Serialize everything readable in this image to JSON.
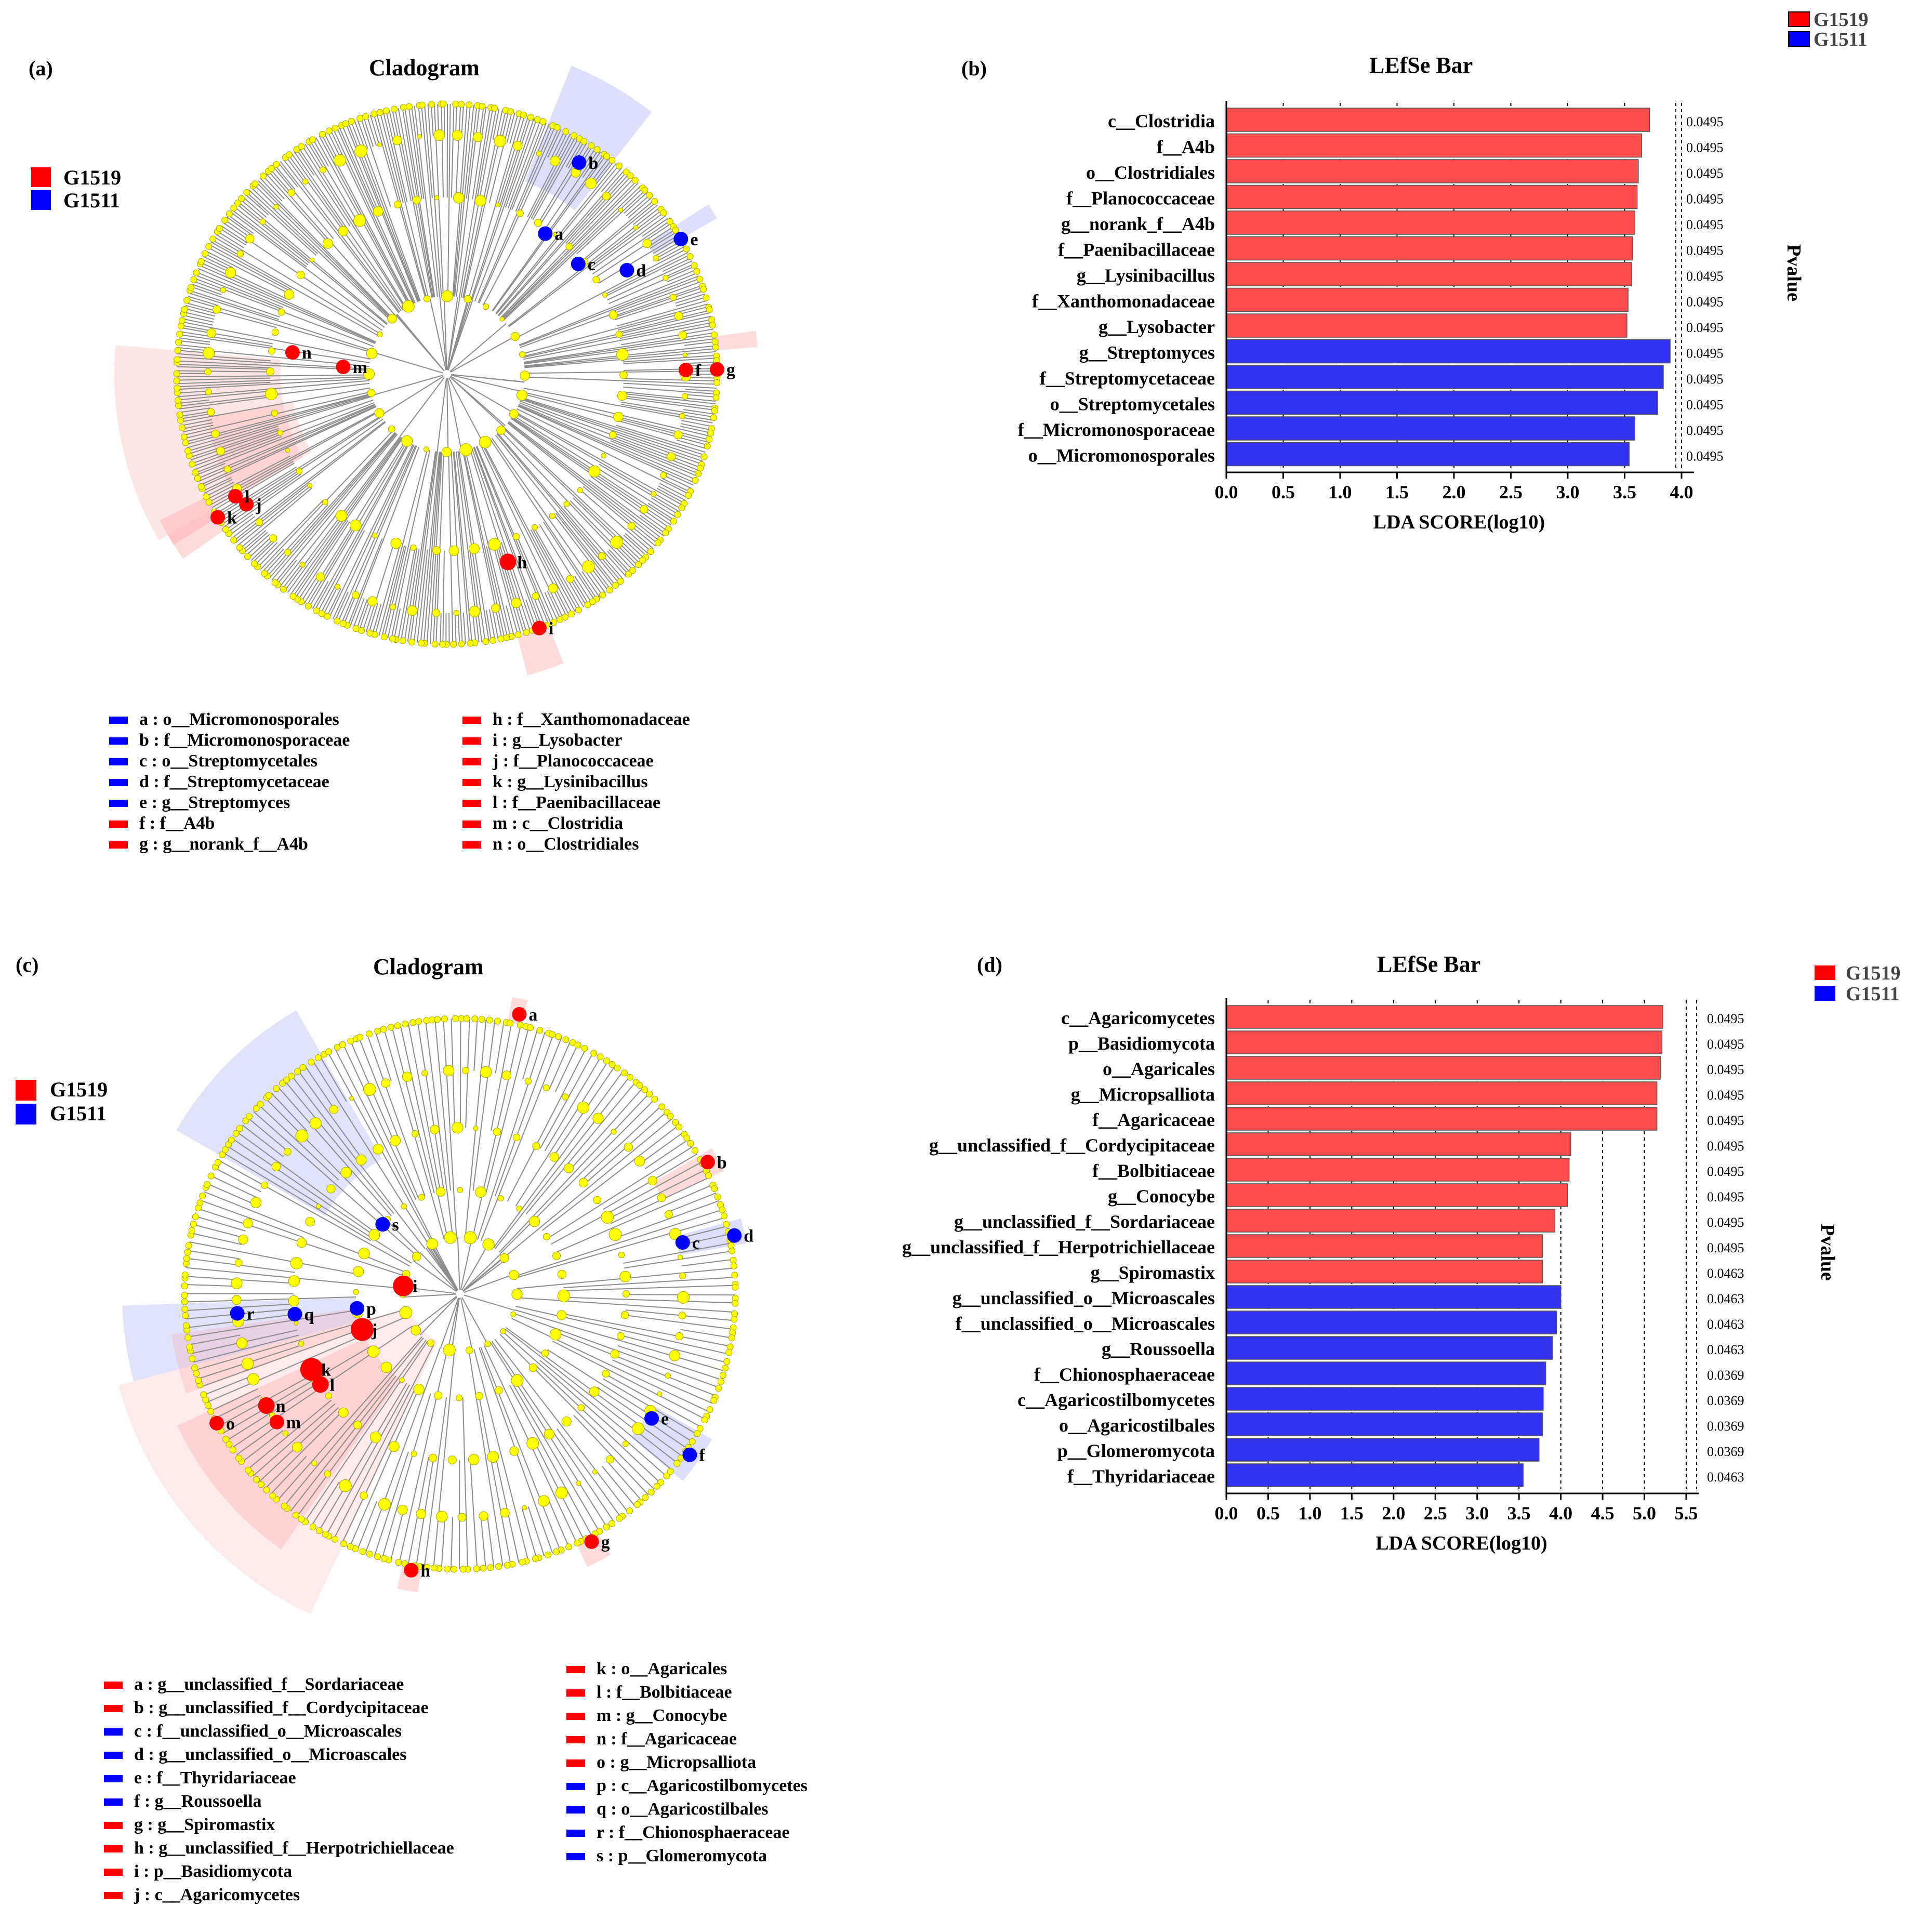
{
  "colors": {
    "red": "#ff0000",
    "blue": "#0000ff",
    "bar_red": "#ff4d4d",
    "bar_blue": "#3333ee",
    "node": "#ffff00",
    "branch": "#8c8c8c"
  },
  "panels": {
    "a": {
      "label": "(a)",
      "title": "Cladogram",
      "legend": [
        {
          "name": "G1519",
          "color": "red"
        },
        {
          "name": "G1511",
          "color": "blue"
        }
      ],
      "markers": [
        {
          "letter": "a",
          "color": "blue"
        },
        {
          "letter": "b",
          "color": "blue"
        },
        {
          "letter": "c",
          "color": "blue"
        },
        {
          "letter": "d",
          "color": "blue"
        },
        {
          "letter": "e",
          "color": "blue"
        },
        {
          "letter": "f",
          "color": "red"
        },
        {
          "letter": "g",
          "color": "red"
        },
        {
          "letter": "h",
          "color": "red"
        },
        {
          "letter": "i",
          "color": "red"
        },
        {
          "letter": "j",
          "color": "red"
        },
        {
          "letter": "k",
          "color": "red"
        },
        {
          "letter": "l",
          "color": "red"
        },
        {
          "letter": "m",
          "color": "red"
        },
        {
          "letter": "n",
          "color": "red"
        }
      ],
      "keys": [
        {
          "text": "a : o__Micromonosporales",
          "color": "blue"
        },
        {
          "text": "b : f__Micromonosporaceae",
          "color": "blue"
        },
        {
          "text": "c : o__Streptomycetales",
          "color": "blue"
        },
        {
          "text": "d : f__Streptomycetaceae",
          "color": "blue"
        },
        {
          "text": "e : g__Streptomyces",
          "color": "blue"
        },
        {
          "text": "f : f__A4b",
          "color": "red"
        },
        {
          "text": "g : g__norank_f__A4b",
          "color": "red"
        },
        {
          "text": "h : f__Xanthomonadaceae",
          "color": "red"
        },
        {
          "text": "i : g__Lysobacter",
          "color": "red"
        },
        {
          "text": "j : f__Planococcaceae",
          "color": "red"
        },
        {
          "text": "k : g__Lysinibacillus",
          "color": "red"
        },
        {
          "text": "l : f__Paenibacillaceae",
          "color": "red"
        },
        {
          "text": "m : c__Clostridia",
          "color": "red"
        },
        {
          "text": "n : o__Clostridiales",
          "color": "red"
        }
      ]
    },
    "c": {
      "label": "(c)",
      "title": "Cladogram",
      "legend": [
        {
          "name": "G1519",
          "color": "red"
        },
        {
          "name": "G1511",
          "color": "blue"
        }
      ],
      "markers": [
        {
          "letter": "a",
          "color": "red"
        },
        {
          "letter": "b",
          "color": "red"
        },
        {
          "letter": "c",
          "color": "blue"
        },
        {
          "letter": "d",
          "color": "blue"
        },
        {
          "letter": "e",
          "color": "blue"
        },
        {
          "letter": "f",
          "color": "blue"
        },
        {
          "letter": "g",
          "color": "red"
        },
        {
          "letter": "h",
          "color": "red"
        },
        {
          "letter": "i",
          "color": "red"
        },
        {
          "letter": "j",
          "color": "red"
        },
        {
          "letter": "k",
          "color": "red"
        },
        {
          "letter": "l",
          "color": "red"
        },
        {
          "letter": "m",
          "color": "red"
        },
        {
          "letter": "n",
          "color": "red"
        },
        {
          "letter": "o",
          "color": "red"
        },
        {
          "letter": "p",
          "color": "blue"
        },
        {
          "letter": "q",
          "color": "blue"
        },
        {
          "letter": "r",
          "color": "blue"
        },
        {
          "letter": "s",
          "color": "blue"
        }
      ],
      "keys": [
        {
          "text": "a : g__unclassified_f__Sordariaceae",
          "color": "red"
        },
        {
          "text": "b : g__unclassified_f__Cordycipitaceae",
          "color": "red"
        },
        {
          "text": "c : f__unclassified_o__Microascales",
          "color": "blue"
        },
        {
          "text": "d : g__unclassified_o__Microascales",
          "color": "blue"
        },
        {
          "text": "e : f__Thyridariaceae",
          "color": "blue"
        },
        {
          "text": "f : g__Roussoella",
          "color": "blue"
        },
        {
          "text": "g : g__Spiromastix",
          "color": "red"
        },
        {
          "text": "h : g__unclassified_f__Herpotrichiellaceae",
          "color": "red"
        },
        {
          "text": "i : p__Basidiomycota",
          "color": "red"
        },
        {
          "text": "j : c__Agaricomycetes",
          "color": "red"
        },
        {
          "text": "k : o__Agaricales",
          "color": "red"
        },
        {
          "text": "l : f__Bolbitiaceae",
          "color": "red"
        },
        {
          "text": "m : g__Conocybe",
          "color": "red"
        },
        {
          "text": "n : f__Agaricaceae",
          "color": "red"
        },
        {
          "text": "o : g__Micropsalliota",
          "color": "red"
        },
        {
          "text": "p : c__Agaricostilbomycetes",
          "color": "blue"
        },
        {
          "text": "q : o__Agaricostilbales",
          "color": "blue"
        },
        {
          "text": "r : f__Chionosphaeraceae",
          "color": "blue"
        },
        {
          "text": "s : p__Glomeromycota",
          "color": "blue"
        }
      ]
    }
  },
  "chart_data": [
    {
      "type": "bar",
      "orientation": "horizontal",
      "label": "(b)",
      "title": "LEfSe Bar",
      "xlabel": "LDA SCORE(log10)",
      "pvalue_label": "Pvalue",
      "xlim": [
        0,
        4.0
      ],
      "ticks": [
        "0.0",
        "0.5",
        "1.0",
        "1.5",
        "2.0",
        "2.5",
        "3.0",
        "3.5",
        "4.0"
      ],
      "legend": [
        {
          "name": "G1519",
          "color": "red"
        },
        {
          "name": "G1511",
          "color": "blue"
        }
      ],
      "bars": [
        {
          "name": "c__Clostridia",
          "value": 3.72,
          "group": "red",
          "p": "0.0495"
        },
        {
          "name": "f__A4b",
          "value": 3.65,
          "group": "red",
          "p": "0.0495"
        },
        {
          "name": "o__Clostridiales",
          "value": 3.62,
          "group": "red",
          "p": "0.0495"
        },
        {
          "name": "f__Planococcaceae",
          "value": 3.61,
          "group": "red",
          "p": "0.0495"
        },
        {
          "name": "g__norank_f__A4b",
          "value": 3.59,
          "group": "red",
          "p": "0.0495"
        },
        {
          "name": "f__Paenibacillaceae",
          "value": 3.57,
          "group": "red",
          "p": "0.0495"
        },
        {
          "name": "g__Lysinibacillus",
          "value": 3.56,
          "group": "red",
          "p": "0.0495"
        },
        {
          "name": "f__Xanthomonadaceae",
          "value": 3.53,
          "group": "red",
          "p": "0.0495"
        },
        {
          "name": "g__Lysobacter",
          "value": 3.52,
          "group": "red",
          "p": "0.0495"
        },
        {
          "name": "g__Streptomyces",
          "value": 3.9,
          "group": "blue",
          "p": "0.0495"
        },
        {
          "name": "f__Streptomycetaceae",
          "value": 3.84,
          "group": "blue",
          "p": "0.0495"
        },
        {
          "name": "o__Streptomycetales",
          "value": 3.79,
          "group": "blue",
          "p": "0.0495"
        },
        {
          "name": "f__Micromonosporaceae",
          "value": 3.59,
          "group": "blue",
          "p": "0.0495"
        },
        {
          "name": "o__Micromonosporales",
          "value": 3.54,
          "group": "blue",
          "p": "0.0495"
        }
      ]
    },
    {
      "type": "bar",
      "orientation": "horizontal",
      "label": "(d)",
      "title": "LEfSe Bar",
      "xlabel": "LDA SCORE(log10)",
      "pvalue_label": "Pvalue",
      "xlim": [
        0,
        5.5
      ],
      "ticks": [
        "0.0",
        "0.5",
        "1.0",
        "1.5",
        "2.0",
        "2.5",
        "3.0",
        "3.5",
        "4.0",
        "4.5",
        "5.0",
        "5.5"
      ],
      "legend": [
        {
          "name": "G1519",
          "color": "red"
        },
        {
          "name": "G1511",
          "color": "blue"
        }
      ],
      "bars": [
        {
          "name": "c__Agaricomycetes",
          "value": 5.22,
          "group": "red",
          "p": "0.0495"
        },
        {
          "name": "p__Basidiomycota",
          "value": 5.21,
          "group": "red",
          "p": "0.0495"
        },
        {
          "name": "o__Agaricales",
          "value": 5.19,
          "group": "red",
          "p": "0.0495"
        },
        {
          "name": "g__Micropsalliota",
          "value": 5.15,
          "group": "red",
          "p": "0.0495"
        },
        {
          "name": "f__Agaricaceae",
          "value": 5.15,
          "group": "red",
          "p": "0.0495"
        },
        {
          "name": "g__unclassified_f__Cordycipitaceae",
          "value": 4.12,
          "group": "red",
          "p": "0.0495"
        },
        {
          "name": "f__Bolbitiaceae",
          "value": 4.1,
          "group": "red",
          "p": "0.0495"
        },
        {
          "name": "g__Conocybe",
          "value": 4.08,
          "group": "red",
          "p": "0.0495"
        },
        {
          "name": "g__unclassified_f__Sordariaceae",
          "value": 3.93,
          "group": "red",
          "p": "0.0495"
        },
        {
          "name": "g__unclassified_f__Herpotrichiellaceae",
          "value": 3.78,
          "group": "red",
          "p": "0.0495"
        },
        {
          "name": "g__Spiromastix",
          "value": 3.78,
          "group": "red",
          "p": "0.0463"
        },
        {
          "name": "g__unclassified_o__Microascales",
          "value": 4.0,
          "group": "blue",
          "p": "0.0463"
        },
        {
          "name": "f__unclassified_o__Microascales",
          "value": 3.95,
          "group": "blue",
          "p": "0.0463"
        },
        {
          "name": "g__Roussoella",
          "value": 3.9,
          "group": "blue",
          "p": "0.0463"
        },
        {
          "name": "f__Chionosphaeraceae",
          "value": 3.82,
          "group": "blue",
          "p": "0.0369"
        },
        {
          "name": "c__Agaricostilbomycetes",
          "value": 3.79,
          "group": "blue",
          "p": "0.0369"
        },
        {
          "name": "o__Agaricostilbales",
          "value": 3.78,
          "group": "blue",
          "p": "0.0369"
        },
        {
          "name": "p__Glomeromycota",
          "value": 3.74,
          "group": "blue",
          "p": "0.0369"
        },
        {
          "name": "f__Thyridariaceae",
          "value": 3.55,
          "group": "blue",
          "p": "0.0463"
        }
      ]
    }
  ]
}
